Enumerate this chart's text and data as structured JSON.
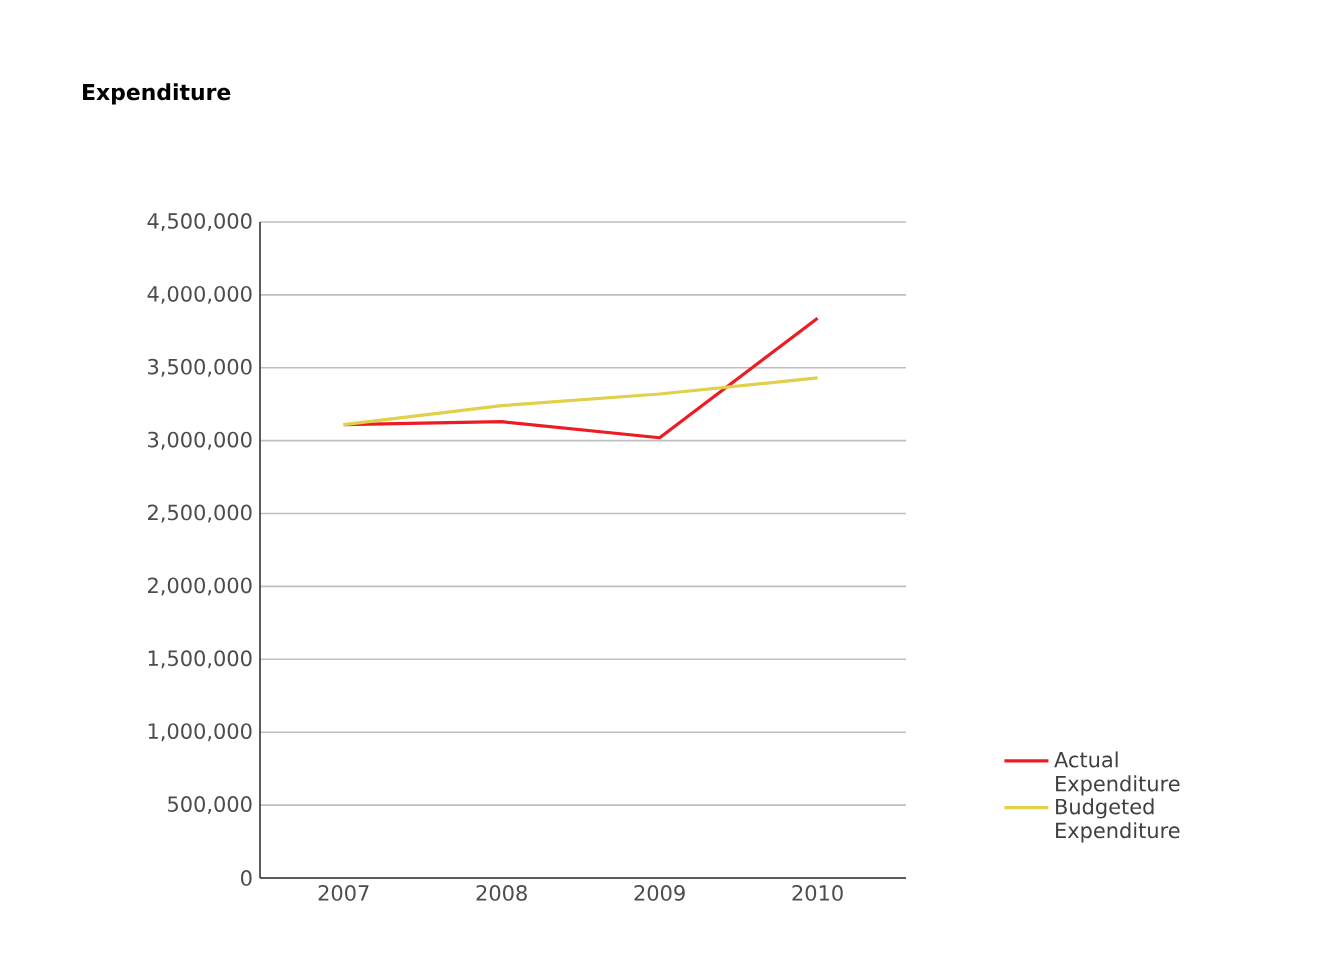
{
  "chart_data": {
    "type": "line",
    "title": "Expenditure",
    "categories": [
      "2007",
      "2008",
      "2009",
      "2010"
    ],
    "series": [
      {
        "name": "Actual Expenditure",
        "color": "#ed1c24",
        "values": [
          3110000,
          3130000,
          3020000,
          3840000
        ]
      },
      {
        "name": "Budgeted Expenditure",
        "color": "#e0d04a",
        "values": [
          3110000,
          3240000,
          3320000,
          3430000
        ]
      }
    ],
    "ylim": [
      0,
      4500000
    ],
    "yticks": [
      {
        "value": 0,
        "label": "0"
      },
      {
        "value": 500000,
        "label": "500,000"
      },
      {
        "value": 1000000,
        "label": "1,000,000"
      },
      {
        "value": 1500000,
        "label": "1,500,000"
      },
      {
        "value": 2000000,
        "label": "2,000,000"
      },
      {
        "value": 2500000,
        "label": "2,500,000"
      },
      {
        "value": 3000000,
        "label": "3,000,000"
      },
      {
        "value": 3500000,
        "label": "3,500,000"
      },
      {
        "value": 4000000,
        "label": "4,000,000"
      },
      {
        "value": 4500000,
        "label": "4,500,000"
      }
    ],
    "grid": "y",
    "legend": "right",
    "marker": "none",
    "line_style": "solid"
  }
}
